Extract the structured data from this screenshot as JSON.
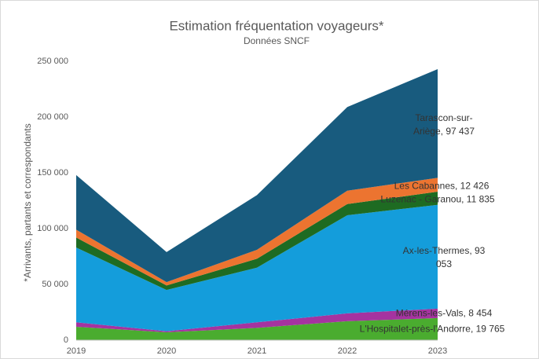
{
  "chart_data": {
    "type": "stacked_area",
    "title": "Estimation fréquentation voyageurs*",
    "subtitle": "Données SNCF",
    "y_label": "*Arrivants, partants et correspondants",
    "categories": [
      "2019",
      "2020",
      "2021",
      "2022",
      "2023"
    ],
    "series": [
      {
        "name": "L'Hospitalet-près-l'Andorre",
        "color": "#4aac2f",
        "values": [
          12000,
          7000,
          11000,
          17000,
          19765
        ],
        "value_labels": [
          null,
          null,
          null,
          null,
          "L'Hospitalet-près-l'Andorre, 19 765"
        ]
      },
      {
        "name": "Mérens-les-Vals",
        "color": "#a533a0",
        "values": [
          4000,
          1000,
          5000,
          7000,
          8454
        ],
        "value_labels": [
          null,
          null,
          null,
          null,
          "Mérens-les-Vals, 8 454"
        ]
      },
      {
        "name": "Ax-les-Thermes",
        "color": "#149ddb",
        "values": [
          67000,
          37000,
          49000,
          88000,
          93053
        ],
        "value_labels": [
          null,
          null,
          null,
          null,
          "Ax-les-Thermes, 93 053"
        ]
      },
      {
        "name": "Luzenac - Garanou",
        "color": "#1e6b22",
        "values": [
          9000,
          4000,
          8000,
          10000,
          11835
        ],
        "value_labels": [
          null,
          null,
          null,
          null,
          "Luzenac - Garanou, 11 835"
        ]
      },
      {
        "name": "Les Cabannes",
        "color": "#ec7430",
        "values": [
          7000,
          3000,
          8000,
          12000,
          12426
        ],
        "value_labels": [
          null,
          null,
          null,
          null,
          "Les Cabannes, 12 426"
        ]
      },
      {
        "name": "Tarascon-sur-Ariège",
        "color": "#185b7e",
        "values": [
          49000,
          27000,
          49000,
          75000,
          97437
        ],
        "value_labels": [
          null,
          null,
          null,
          null,
          "Tarascon-sur-Ariège, 97 437"
        ]
      }
    ],
    "ylim": [
      0,
      250000
    ],
    "yticks": [
      0,
      {
        "value": 50000,
        "label": "50 000"
      },
      {
        "value": 100000,
        "label": "100 000"
      },
      {
        "value": 150000,
        "label": "150 000"
      },
      {
        "value": 200000,
        "label": "200 000"
      },
      {
        "value": 250000,
        "label": "250 000"
      }
    ],
    "grid": false
  }
}
